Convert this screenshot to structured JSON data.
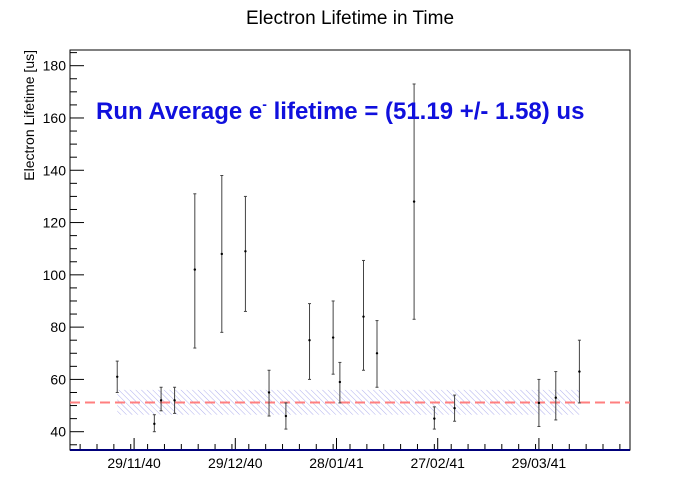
{
  "chart_data": {
    "type": "scatter",
    "title": "Electron Lifetime in Time",
    "xlabel": "",
    "ylabel": "Electron Lifetime [us]",
    "ylim": [
      33,
      186
    ],
    "xlim": [
      "2040-11-10",
      "2041-04-25"
    ],
    "yticks": [
      40,
      60,
      80,
      100,
      120,
      140,
      160,
      180
    ],
    "xticks": [
      {
        "date": "2040-11-29",
        "label": "29/11/40"
      },
      {
        "date": "2040-12-29",
        "label": "29/12/40"
      },
      {
        "date": "2041-01-28",
        "label": "28/01/41"
      },
      {
        "date": "2041-02-27",
        "label": "27/02/41"
      },
      {
        "date": "2041-03-29",
        "label": "29/03/41"
      }
    ],
    "grid": false,
    "points": [
      {
        "x": "2040-11-24",
        "y": 61,
        "ylow": 55,
        "yhigh": 67
      },
      {
        "x": "2040-12-05",
        "y": 43,
        "ylow": 40,
        "yhigh": 46.5
      },
      {
        "x": "2040-12-07",
        "y": 52,
        "ylow": 48,
        "yhigh": 57
      },
      {
        "x": "2040-12-11",
        "y": 52,
        "ylow": 47,
        "yhigh": 57
      },
      {
        "x": "2040-12-17",
        "y": 102,
        "ylow": 72,
        "yhigh": 131
      },
      {
        "x": "2040-12-25",
        "y": 108,
        "ylow": 78,
        "yhigh": 138
      },
      {
        "x": "2041-01-01",
        "y": 109,
        "ylow": 86,
        "yhigh": 130
      },
      {
        "x": "2041-01-08",
        "y": 55,
        "ylow": 46,
        "yhigh": 63.5
      },
      {
        "x": "2041-01-13",
        "y": 46,
        "ylow": 41,
        "yhigh": 51
      },
      {
        "x": "2041-01-20",
        "y": 75,
        "ylow": 60,
        "yhigh": 89
      },
      {
        "x": "2041-01-27",
        "y": 76,
        "ylow": 62,
        "yhigh": 90
      },
      {
        "x": "2041-01-29",
        "y": 59,
        "ylow": 51,
        "yhigh": 66.5
      },
      {
        "x": "2041-02-05",
        "y": 84,
        "ylow": 63.5,
        "yhigh": 105.5
      },
      {
        "x": "2041-02-09",
        "y": 70,
        "ylow": 57,
        "yhigh": 82.5
      },
      {
        "x": "2041-02-20",
        "y": 128,
        "ylow": 83,
        "yhigh": 173
      },
      {
        "x": "2041-02-26",
        "y": 45,
        "ylow": 41,
        "yhigh": 49.5
      },
      {
        "x": "2041-03-04",
        "y": 49,
        "ylow": 44,
        "yhigh": 54
      },
      {
        "x": "2041-03-29",
        "y": 51,
        "ylow": 42,
        "yhigh": 60
      },
      {
        "x": "2041-04-03",
        "y": 53,
        "ylow": 44.5,
        "yhigh": 63
      },
      {
        "x": "2041-04-10",
        "y": 63,
        "ylow": 51,
        "yhigh": 75
      }
    ],
    "average": {
      "value": 51.19,
      "error": 1.58,
      "band_low": 46.5,
      "band_high": 56,
      "band_x": [
        "2040-11-24",
        "2041-04-10"
      ]
    },
    "annotation": {
      "prefix": "Run Average e",
      "superscript": "-",
      "suffix": " lifetime = (51.19 +/- 1.58) us"
    },
    "colors": {
      "points": "#000000",
      "average_line": "#ff7f7f",
      "band_hatch": "#6f6fe0",
      "annotation": "#1010dd",
      "bottom_axis": "#00007a"
    }
  }
}
